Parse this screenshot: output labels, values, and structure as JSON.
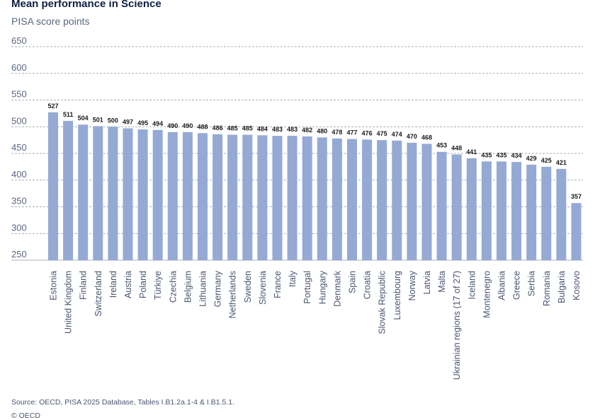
{
  "footer": {
    "source": "Source: OECD, PISA 2025 Database, Tables I.B1.2a.1-4 & I.B1.5.1.",
    "copyright": "© OECD"
  },
  "chart_data": {
    "type": "bar",
    "title": "Mean performance in Science",
    "subtitle": "PISA score points",
    "xlabel": "",
    "ylabel": "",
    "ylim": [
      250,
      650
    ],
    "yticks": [
      250,
      300,
      350,
      400,
      450,
      500,
      550,
      600,
      650
    ],
    "grid": true,
    "legend": "none",
    "bar_color": "#94aad4",
    "categories": [
      "Estonia",
      "United Kingdom",
      "Finland",
      "Switzerland",
      "Ireland",
      "Austria",
      "Poland",
      "Türkiye",
      "Czechia",
      "Belgium",
      "Lithuania",
      "Germany",
      "Netherlands",
      "Sweden",
      "Slovenia",
      "France",
      "Italy",
      "Portugal",
      "Hungary",
      "Denmark",
      "Spain",
      "Croatia",
      "Slovak Republic",
      "Luxembourg",
      "Norway",
      "Latvia",
      "Malta",
      "Ukrainian regions (17 of 27)",
      "Iceland",
      "Montenegro",
      "Albania",
      "Greece",
      "Serbia",
      "Romania",
      "Bulgaria",
      "Kosovo"
    ],
    "values": [
      527,
      511,
      504,
      501,
      500,
      497,
      495,
      494,
      490,
      490,
      488,
      486,
      485,
      485,
      484,
      483,
      483,
      482,
      480,
      478,
      477,
      476,
      475,
      474,
      470,
      468,
      453,
      448,
      441,
      435,
      435,
      434,
      429,
      425,
      421,
      357
    ]
  }
}
